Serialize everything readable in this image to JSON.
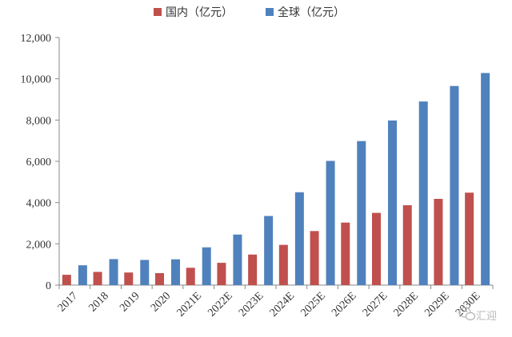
{
  "chart_data": {
    "type": "bar",
    "title": "",
    "xlabel": "",
    "ylabel": "",
    "categories": [
      "2017",
      "2018",
      "2019",
      "2020",
      "2021E",
      "2022E",
      "2023E",
      "2024E",
      "2025E",
      "2026E",
      "2027E",
      "2028E",
      "2029E",
      "2030E"
    ],
    "series": [
      {
        "name": "国内（亿元）",
        "color": "#c0504d",
        "values": [
          500,
          640,
          610,
          580,
          840,
          1080,
          1480,
          1950,
          2620,
          3030,
          3500,
          3870,
          4180,
          4480
        ]
      },
      {
        "name": "全球（亿元）",
        "color": "#4f81bd",
        "values": [
          960,
          1260,
          1220,
          1250,
          1830,
          2450,
          3350,
          4500,
          6020,
          6980,
          7980,
          8900,
          9650,
          10280
        ]
      }
    ],
    "ylim": [
      0,
      12000
    ],
    "yticks": [
      0,
      2000,
      4000,
      6000,
      8000,
      10000,
      12000
    ],
    "ytick_labels": [
      "0",
      "2,000",
      "4,000",
      "6,000",
      "8,000",
      "10,000",
      "12,000"
    ],
    "grid": false,
    "legend_position": "top-center"
  },
  "watermark": {
    "text": "汇迎",
    "icon": "wechat-logo-icon"
  }
}
